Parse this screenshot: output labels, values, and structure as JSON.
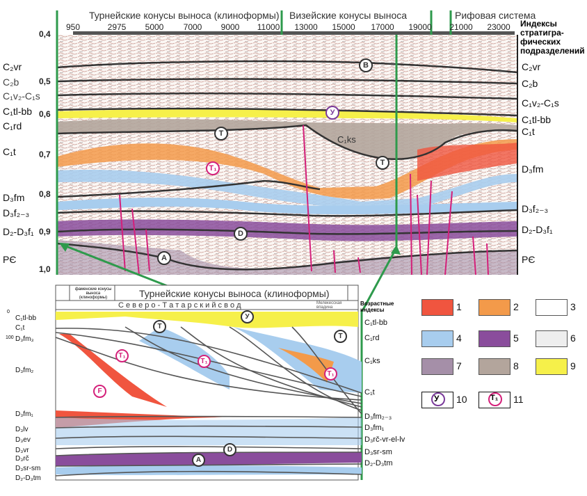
{
  "seismic": {
    "headers": [
      "Турнейские конусы выноса (клиноформы)",
      "Визейские конусы выноса",
      "Рифовая система"
    ],
    "right_header": "Индексы стратигра-фических подразделений",
    "x_ticks": [
      "950",
      "2975",
      "5000",
      "7000",
      "9000",
      "11000",
      "13000",
      "15000",
      "17000",
      "19000",
      "21000",
      "23000"
    ],
    "time_ticks": [
      "0,4",
      "0,5",
      "0,6",
      "0,7",
      "0,8",
      "0,9",
      "1,0"
    ],
    "left_labels": [
      "C₂vr",
      "C₂b",
      "C₁v₂-C₁s",
      "C₁tl-bb",
      "C₁rd",
      "C₁t",
      "D₃fm",
      "D₃f₂₋₃",
      "D₂-D₃f₁",
      "PЄ"
    ],
    "right_labels": [
      "C₂vr",
      "C₂b",
      "C₁v₂-C₁s",
      "C₁tl-bb",
      "C₁t",
      "D₃fm",
      "D₃f₂₋₃",
      "D₂-D₃f₁",
      "PЄ"
    ],
    "markers": [
      "B",
      "У",
      "T",
      "T₁",
      "T",
      "D",
      "A"
    ],
    "inner_label": "C₁ks"
  },
  "section": {
    "header_small": "фаменские конусы выноса (клиноформы)",
    "header_main": "Турнейские конусы выноса (клиноформы)",
    "sub_header": "С е в е р о - Т а т а р с к и й   с в о д",
    "sub_right": "Мелекесская впадина",
    "age_header": "Возрастные индексы",
    "scale": [
      "0",
      "100"
    ],
    "left_labels": [
      "C₁tl-bb",
      "C₁t",
      "D₃fm₃",
      "D₃fm₂",
      "D₃fm₁",
      "D₃lv",
      "D₃ev",
      "D₃vr",
      "D₃rč",
      "D₃sr-sm",
      "D₂-D₃tm"
    ],
    "right_labels": [
      "C₁tl-bb",
      "C₁rd",
      "C₁ks",
      "C₁t",
      "D₃fm₂₋₃",
      "D₃fm₁",
      "D₃rč-vr-el-lv",
      "D₃sr-sm",
      "D₂-D₃tm"
    ],
    "markers": [
      "T",
      "У",
      "T",
      "T₁",
      "T₁",
      "T₁",
      "F",
      "D",
      "A"
    ]
  },
  "legend": {
    "items": [
      {
        "num": "1",
        "color": "#f0553f"
      },
      {
        "num": "2",
        "color": "#f39a4a"
      },
      {
        "num": "3",
        "color": "#ffffff"
      },
      {
        "num": "4",
        "color": "#a8cdee"
      },
      {
        "num": "5",
        "color": "#8a4d9c"
      },
      {
        "num": "6",
        "color": "#eeeeee"
      },
      {
        "num": "7",
        "color": "#a58fa8"
      },
      {
        "num": "8",
        "color": "#b3a59c"
      },
      {
        "num": "9",
        "color": "#f6f04a"
      }
    ],
    "symbols": [
      {
        "num": "10",
        "glyph": "У"
      },
      {
        "num": "11",
        "glyph": "T₁"
      }
    ]
  },
  "colors": {
    "green": "#2e9a4c",
    "magenta": "#d4207a"
  }
}
